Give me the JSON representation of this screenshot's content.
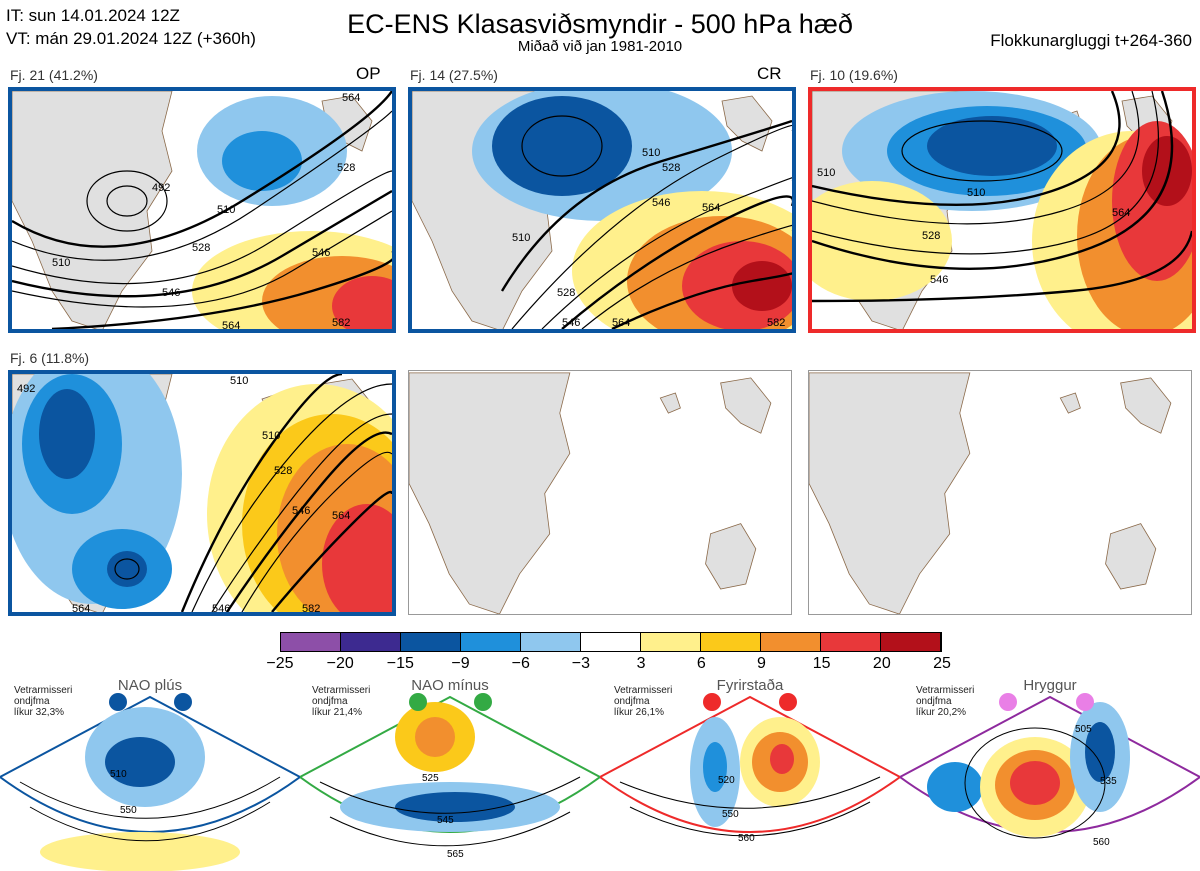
{
  "header": {
    "it": "IT: sun 14.01.2024 12Z",
    "vt": "VT: mán 29.01.2024 12Z  (+360h)",
    "title": "EC-ENS Klasasviðsmyndir - 500 hPa hæð",
    "subtitle": "Miðað við jan 1981-2010",
    "window": "Flokkunargluggi t+264-360"
  },
  "colors": {
    "blue_frame": "#0b55a0",
    "red_frame": "#ee2a2a",
    "green_frame": "#33aa44",
    "purple_frame": "#8e2a9e",
    "land": "#e0e0e0",
    "coast": "#8b6a4a"
  },
  "clusters": [
    {
      "label": "Fj. 21 (41.2%)",
      "tag": "OP",
      "contours": [
        "510",
        "528",
        "546",
        "564",
        "582",
        "492",
        "510",
        "528",
        "546",
        "564"
      ]
    },
    {
      "label": "Fj. 14 (27.5%)",
      "tag": "CR",
      "contours": [
        "510",
        "528",
        "546",
        "564",
        "582",
        "510",
        "546",
        "564",
        "528"
      ]
    },
    {
      "label": "Fj. 10 (19.6%)",
      "tag": "",
      "contours": [
        "510",
        "528",
        "546",
        "564",
        "510"
      ]
    },
    {
      "label": "Fj. 6 (11.8%)",
      "tag": "",
      "contours": [
        "510",
        "528",
        "546",
        "564",
        "582",
        "546",
        "564",
        "510",
        "492"
      ]
    }
  ],
  "colorbar": {
    "ticks": [
      "−25",
      "−20",
      "−15",
      "−9",
      "−6",
      "−3",
      "3",
      "6",
      "9",
      "15",
      "20",
      "25"
    ],
    "colors": [
      "#8d4fa8",
      "#3d2a90",
      "#0b55a0",
      "#1f90db",
      "#8fc7ee",
      "#ffffff",
      "#fff08c",
      "#fbc91a",
      "#f28f2e",
      "#e8383a",
      "#b3101a"
    ]
  },
  "regimes": [
    {
      "name": "NAO plús",
      "info": [
        "Vetrarmisseri",
        "ondjfma",
        "líkur 32,3%"
      ],
      "contours": [
        "510",
        "550"
      ]
    },
    {
      "name": "NAO mínus",
      "info": [
        "Vetrarmisseri",
        "ondjfma",
        "líkur 21,4%"
      ],
      "contours": [
        "525",
        "545",
        "565"
      ]
    },
    {
      "name": "Fyrirstaða",
      "info": [
        "Vetrarmisseri",
        "ondjfma",
        "líkur 26,1%"
      ],
      "contours": [
        "520",
        "550",
        "560"
      ]
    },
    {
      "name": "Hryggur",
      "info": [
        "Vetrarmisseri",
        "ondjfma",
        "líkur 20,2%"
      ],
      "contours": [
        "505",
        "535",
        "560"
      ]
    }
  ]
}
